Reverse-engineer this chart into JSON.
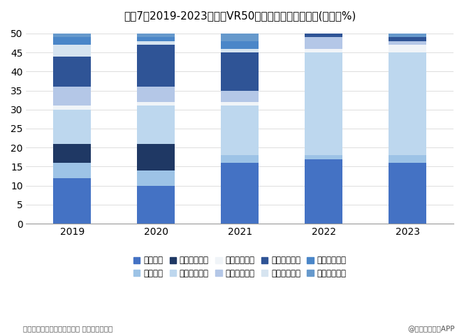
{
  "title": "图表7：2019-2023年中国VR50强企业产业链分布情况(单位：%)",
  "years": [
    "2019",
    "2020",
    "2021",
    "2022",
    "2023"
  ],
  "categories": [
    "整机设备",
    "分发平台",
    "行业解决方案",
    "近眼显示技术",
    "开发工具软件",
    "教育培训应用",
    "文化旅游应用",
    "工业生产应用",
    "体育健康应用",
    "智慧城市应用"
  ],
  "colors": [
    "#4472c4",
    "#9dc3e6",
    "#1f3864",
    "#bdd7ee",
    "#f2f2f2",
    "#b4c7e7",
    "#2e5fa3",
    "#dae3f3",
    "#5b9bd5",
    "#70a0cc"
  ],
  "segments": {
    "整机设备": [
      12,
      10,
      16,
      17,
      16
    ],
    "分发平台": [
      4,
      4,
      2,
      1,
      2
    ],
    "行业解决方案": [
      5,
      7,
      0,
      0,
      0
    ],
    "近眼显示技术": [
      9,
      10,
      13,
      27,
      27
    ],
    "开发工具软件": [
      1,
      1,
      1,
      1,
      2
    ],
    "教育培训应用": [
      5,
      4,
      3,
      3,
      1
    ],
    "文化旅游应用": [
      8,
      11,
      10,
      1,
      1
    ],
    "工业生产应用": [
      3,
      1,
      1,
      0,
      0
    ],
    "体育健康应用": [
      2,
      1,
      2,
      0,
      0
    ],
    "智慧城市应用": [
      1,
      1,
      2,
      0,
      1
    ]
  },
  "source_left": "资料来源：虚拟现实产业联盟 前瞻产业研究院",
  "source_right": "@前瞻经济学人APP",
  "ylim": [
    0,
    50
  ],
  "yticks": [
    0,
    5,
    10,
    15,
    20,
    25,
    30,
    35,
    40,
    45,
    50
  ],
  "background_color": "#ffffff"
}
